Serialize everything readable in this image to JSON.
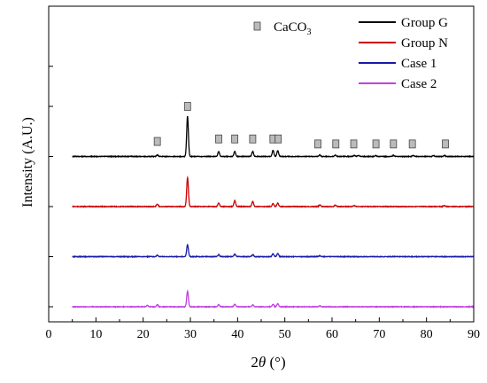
{
  "chart_data": {
    "type": "line",
    "xlabel_prefix": "2",
    "xlabel_symbol": "θ",
    "xlabel_unit": "(°)",
    "ylabel": "Intensity (A.U.)",
    "xlim": [
      0,
      90
    ],
    "x_ticks": [
      0,
      10,
      20,
      30,
      40,
      50,
      60,
      70,
      80,
      90
    ],
    "y_offsets": [
      3,
      2,
      1,
      0
    ],
    "series": [
      {
        "name": "Group G",
        "color": "#000000",
        "offset": 3,
        "peaks": [
          {
            "x": 23.0,
            "h": 0.03
          },
          {
            "x": 29.4,
            "h": 0.8
          },
          {
            "x": 36.0,
            "h": 0.1
          },
          {
            "x": 39.4,
            "h": 0.1
          },
          {
            "x": 43.2,
            "h": 0.1
          },
          {
            "x": 47.5,
            "h": 0.12
          },
          {
            "x": 48.5,
            "h": 0.12
          },
          {
            "x": 57.4,
            "h": 0.03
          },
          {
            "x": 60.7,
            "h": 0.03
          },
          {
            "x": 64.7,
            "h": 0.02
          },
          {
            "x": 65.6,
            "h": 0.02
          },
          {
            "x": 69.2,
            "h": 0.02
          },
          {
            "x": 73.0,
            "h": 0.02
          },
          {
            "x": 77.2,
            "h": 0.02
          },
          {
            "x": 81.5,
            "h": 0.02
          },
          {
            "x": 83.8,
            "h": 0.02
          }
        ]
      },
      {
        "name": "Group N",
        "color": "#cc0000",
        "offset": 2,
        "peaks": [
          {
            "x": 23.0,
            "h": 0.05
          },
          {
            "x": 29.4,
            "h": 0.58
          },
          {
            "x": 36.0,
            "h": 0.07
          },
          {
            "x": 39.4,
            "h": 0.12
          },
          {
            "x": 43.2,
            "h": 0.1
          },
          {
            "x": 47.5,
            "h": 0.06
          },
          {
            "x": 48.5,
            "h": 0.07
          },
          {
            "x": 57.4,
            "h": 0.03
          },
          {
            "x": 60.7,
            "h": 0.03
          },
          {
            "x": 64.7,
            "h": 0.02
          },
          {
            "x": 83.8,
            "h": 0.02
          }
        ]
      },
      {
        "name": "Case 1",
        "color": "#1a1aa6",
        "offset": 1,
        "peaks": [
          {
            "x": 23.0,
            "h": 0.03
          },
          {
            "x": 29.4,
            "h": 0.24
          },
          {
            "x": 36.0,
            "h": 0.04
          },
          {
            "x": 39.4,
            "h": 0.05
          },
          {
            "x": 43.2,
            "h": 0.04
          },
          {
            "x": 47.5,
            "h": 0.06
          },
          {
            "x": 48.5,
            "h": 0.06
          },
          {
            "x": 57.4,
            "h": 0.02
          }
        ]
      },
      {
        "name": "Case 2",
        "color": "#c040e0",
        "offset": 0,
        "peaks": [
          {
            "x": 20.9,
            "h": 0.03
          },
          {
            "x": 23.0,
            "h": 0.04
          },
          {
            "x": 29.4,
            "h": 0.31
          },
          {
            "x": 36.0,
            "h": 0.04
          },
          {
            "x": 39.4,
            "h": 0.05
          },
          {
            "x": 43.2,
            "h": 0.04
          },
          {
            "x": 47.5,
            "h": 0.05
          },
          {
            "x": 48.5,
            "h": 0.06
          },
          {
            "x": 57.4,
            "h": 0.02
          }
        ]
      }
    ],
    "marker_legend": {
      "label_base": "CaCO",
      "label_sub": "3",
      "color": "#bbbbbb"
    },
    "markers": [
      {
        "x": 23.0,
        "level": 3.3
      },
      {
        "x": 29.4,
        "level": 4.0
      },
      {
        "x": 36.0,
        "level": 3.35
      },
      {
        "x": 39.4,
        "level": 3.35
      },
      {
        "x": 43.2,
        "level": 3.35
      },
      {
        "x": 47.5,
        "level": 3.35
      },
      {
        "x": 48.6,
        "level": 3.35
      },
      {
        "x": 57.0,
        "level": 3.25
      },
      {
        "x": 60.8,
        "level": 3.25
      },
      {
        "x": 64.6,
        "level": 3.25
      },
      {
        "x": 69.3,
        "level": 3.25
      },
      {
        "x": 73.0,
        "level": 3.25
      },
      {
        "x": 77.0,
        "level": 3.25
      },
      {
        "x": 84.0,
        "level": 3.25
      }
    ],
    "legend_position": "top-right",
    "grid": false
  }
}
